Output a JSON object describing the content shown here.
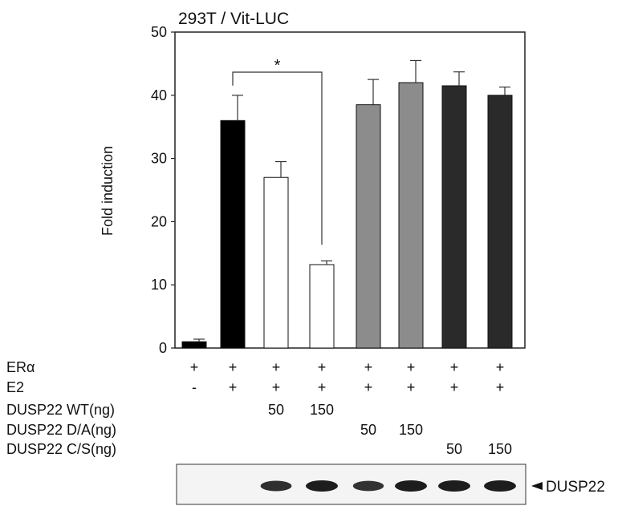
{
  "chart_data": {
    "type": "bar",
    "title": "293T / Vit-LUC",
    "ylabel": "Fold induction",
    "xlabel": "",
    "ylim": [
      0,
      50
    ],
    "yticks": [
      0,
      10,
      20,
      30,
      40,
      50
    ],
    "grid": false,
    "values": [
      1,
      36,
      27,
      13.2,
      38.5,
      42,
      41.5,
      40
    ],
    "errors": [
      0.4,
      4,
      2.5,
      0.6,
      4,
      3.5,
      2.2,
      1.3
    ],
    "bar_colors": [
      "#000000",
      "#000000",
      "#ffffff",
      "#ffffff",
      "#8c8c8c",
      "#8c8c8c",
      "#2a2a2a",
      "#2a2a2a"
    ],
    "significance": {
      "from": 1,
      "to": 3,
      "label": "*"
    },
    "conditions": [
      {
        "label": "ERα",
        "values": [
          "+",
          "+",
          "+",
          "+",
          "+",
          "+",
          "+",
          "+"
        ]
      },
      {
        "label": "E2",
        "values": [
          "-",
          "+",
          "+",
          "+",
          "+",
          "+",
          "+",
          "+"
        ]
      },
      {
        "label": "DUSP22 WT(ng)",
        "values": [
          "",
          "",
          "50",
          "150",
          "",
          "",
          "",
          ""
        ]
      },
      {
        "label": "DUSP22 D/A(ng)",
        "values": [
          "",
          "",
          "",
          "",
          "50",
          "150",
          "",
          ""
        ]
      },
      {
        "label": "DUSP22 C/S(ng)",
        "values": [
          "",
          "",
          "",
          "",
          "",
          "",
          "50",
          "150"
        ]
      }
    ],
    "blot": {
      "label": "DUSP22",
      "band_intensity": [
        0,
        0,
        0.8,
        1,
        0.75,
        1,
        1,
        1
      ]
    }
  }
}
